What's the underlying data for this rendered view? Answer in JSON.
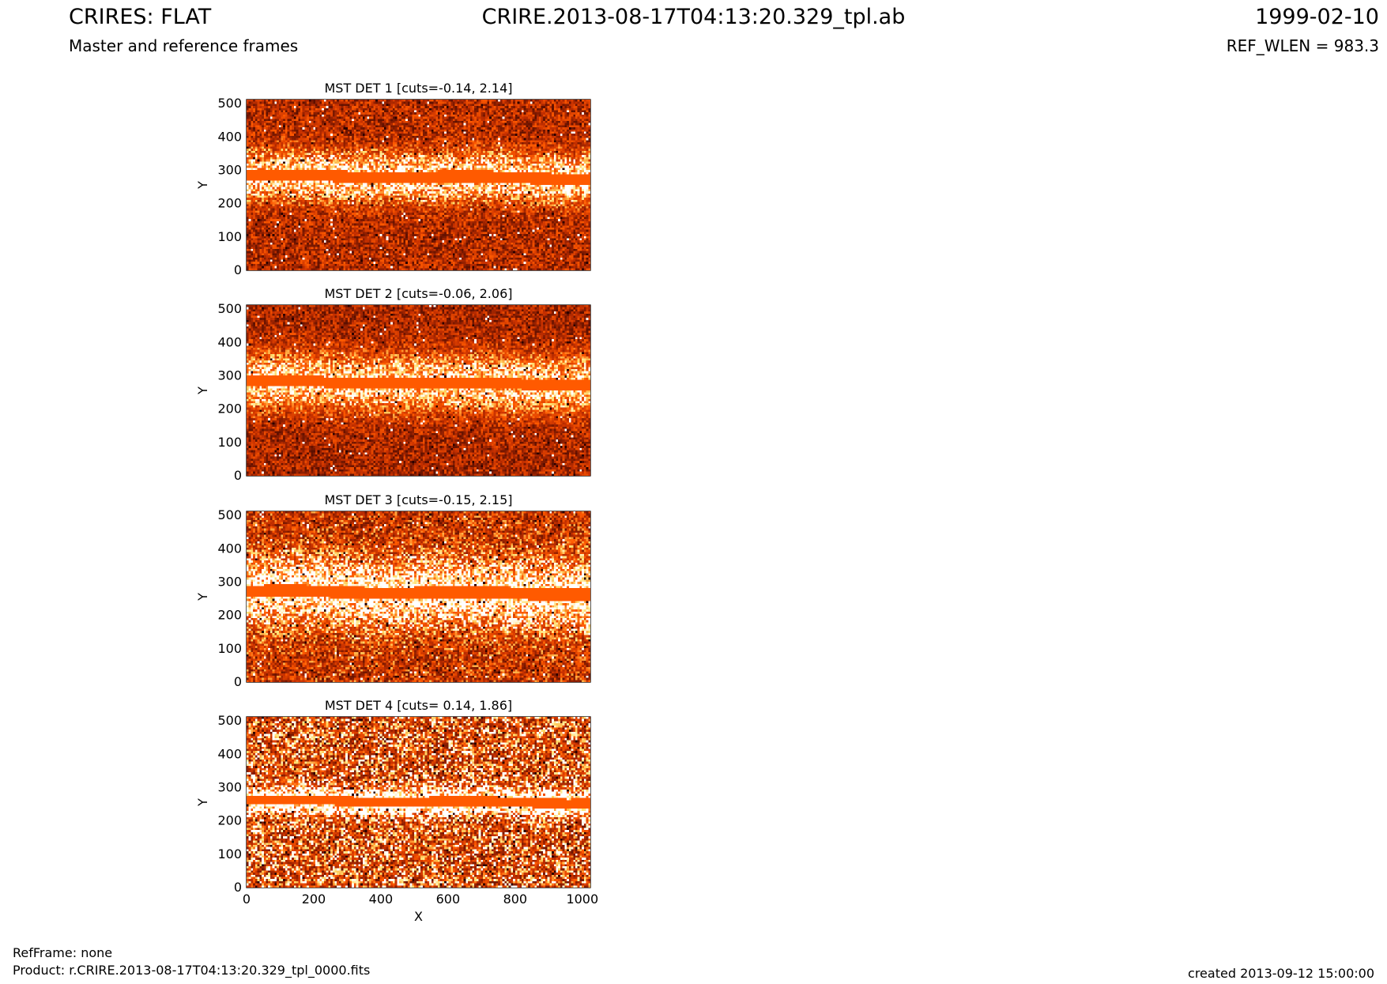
{
  "header": {
    "title_left": "CRIRES: FLAT",
    "subtitle_left": "Master and reference frames",
    "title_center": "CRIRE.2013-08-17T04:13:20.329_tpl.ab",
    "title_right": "1999-02-10",
    "subtitle_right": "REF_WLEN = 983.3"
  },
  "footer": {
    "refframe": "RefFrame: none",
    "product": "Product: r.CRIRE.2013-08-17T04:13:20.329_tpl_0000.fits",
    "created": "created 2013-09-12 15:00:00"
  },
  "colors": {
    "background_dark": "#2b0000",
    "mid": "#c63000",
    "band": "#ff5a00",
    "bright": "#ffffff",
    "glow": "#ffe070"
  },
  "chart_data": [
    {
      "type": "heatmap",
      "title": "MST DET 1 [cuts=-0.14, 2.14]",
      "ylabel": "Y",
      "xlabel": "",
      "xlim": [
        0,
        1024
      ],
      "ylim": [
        0,
        512
      ],
      "xticks": [
        0,
        200,
        400,
        600,
        800,
        1000
      ],
      "yticks": [
        0,
        100,
        200,
        300,
        400,
        500
      ],
      "show_xtick_labels": false,
      "band_center_y": 284,
      "band_halfwidth": 17,
      "glow_halfwidth": 62,
      "noise_intensity": 0.55,
      "background_level": 0.42
    },
    {
      "type": "heatmap",
      "title": "MST DET 2 [cuts=-0.06, 2.06]",
      "ylabel": "Y",
      "xlabel": "",
      "xlim": [
        0,
        1024
      ],
      "ylim": [
        0,
        512
      ],
      "xticks": [
        0,
        200,
        400,
        600,
        800,
        1000
      ],
      "yticks": [
        0,
        100,
        200,
        300,
        400,
        500
      ],
      "show_xtick_labels": false,
      "band_center_y": 282,
      "band_halfwidth": 16,
      "glow_halfwidth": 80,
      "noise_intensity": 0.5,
      "background_level": 0.38
    },
    {
      "type": "heatmap",
      "title": "MST DET 3 [cuts=-0.15, 2.15]",
      "ylabel": "Y",
      "xlabel": "",
      "xlim": [
        0,
        1024
      ],
      "ylim": [
        0,
        512
      ],
      "xticks": [
        0,
        200,
        400,
        600,
        800,
        1000
      ],
      "yticks": [
        0,
        100,
        200,
        300,
        400,
        500
      ],
      "show_xtick_labels": false,
      "band_center_y": 272,
      "band_halfwidth": 18,
      "glow_halfwidth": 90,
      "noise_intensity": 0.65,
      "background_level": 0.5
    },
    {
      "type": "heatmap",
      "title": "MST DET 4 [cuts= 0.14, 1.86]",
      "ylabel": "Y",
      "xlabel": "X",
      "xlim": [
        0,
        1024
      ],
      "ylim": [
        0,
        512
      ],
      "xticks": [
        0,
        200,
        400,
        600,
        800,
        1000
      ],
      "yticks": [
        0,
        100,
        200,
        300,
        400,
        500
      ],
      "show_xtick_labels": true,
      "band_center_y": 262,
      "band_halfwidth": 14,
      "glow_halfwidth": 28,
      "noise_intensity": 0.85,
      "background_level": 0.62
    }
  ]
}
